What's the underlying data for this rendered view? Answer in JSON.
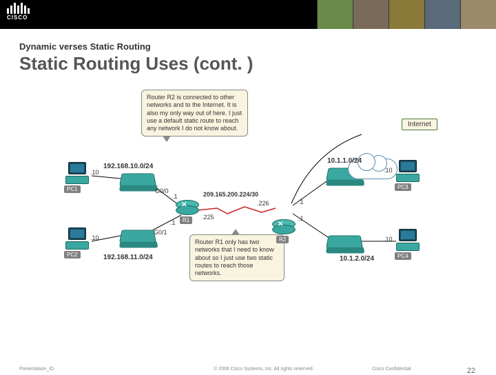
{
  "header": {
    "subtitle": "Dynamic verses Static Routing",
    "title": "Static Routing Uses (cont. )",
    "logo_text": "CISCO",
    "photo_colors": [
      "#6a8a4a",
      "#7a6a5a",
      "#8a7a3a",
      "#5a6a7a",
      "#9a8a6a"
    ]
  },
  "footer": {
    "presentation_id": "Presentation_ID",
    "copyright": "© 2008 Cisco Systems, Inc. All rights reserved.",
    "confidential": "Cisco Confidential",
    "page": "22"
  },
  "diagram": {
    "colors": {
      "device_fill": "#3aa8a0",
      "device_border": "#1a6860",
      "callout_bg": "#f8f4e0",
      "line": "#000000",
      "serial_line": "#cc2020",
      "cloud_border": "#5a8aaa"
    },
    "callouts": {
      "top": "Router R2 is connected to other networks and to the Internet. It is also my only way out of here. I just use a default static route to reach any network I do not know about.",
      "bottom": "Router R1 only has two networks that I need to know about so I just use two static routes to reach those networks."
    },
    "networks": {
      "left_top": "192.168.10.0/24",
      "left_bottom": "192.168.11.0/24",
      "right_top": "10.1.1.0/24",
      "right_bottom": "10.1.2.0/24",
      "wan": "209.165.200.224/30"
    },
    "hosts": {
      "pc1": {
        "label": "PC1",
        "ip": ".10"
      },
      "pc2": {
        "label": "PC2",
        "ip": ".10"
      },
      "pc3": {
        "label": "PC3",
        "ip": ".10"
      },
      "pc4": {
        "label": "PC4",
        "ip": ".10"
      }
    },
    "routers": {
      "r1": {
        "label": "R1",
        "g00": "G0/0",
        "g00_ip": ".1",
        "g01": "G0/1",
        "g01_ip": ".1",
        "s_ip": ".225"
      },
      "r2": {
        "label": "R2",
        "s_ip": ".226",
        "g0_ip": ".1",
        "g1_ip": ".1"
      }
    },
    "cloud_label": "Internet",
    "logo_bar_heights": [
      8,
      12,
      16,
      12,
      16,
      12,
      8
    ]
  }
}
